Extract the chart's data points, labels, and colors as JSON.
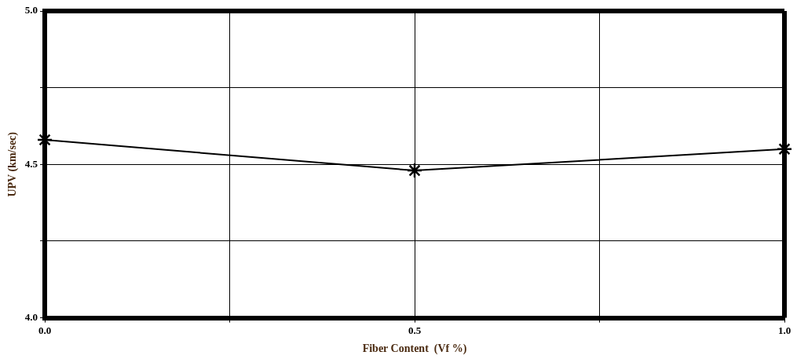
{
  "chart_data": {
    "type": "line",
    "xlabel": "Fiber Content  (Vf %)",
    "ylabel": "UPV (km/sec)",
    "x": [
      0,
      0.5,
      1.0
    ],
    "series": [
      {
        "color": "#000000",
        "values": [
          4.58,
          4.48,
          4.55
        ]
      }
    ],
    "xlim": [
      0,
      1.0
    ],
    "xticks": [
      {
        "value": 0,
        "label": "0.0"
      },
      {
        "value": 0.25,
        "label": null
      },
      {
        "value": 0.5,
        "label": "0.5"
      },
      {
        "value": 0.75,
        "label": null
      },
      {
        "value": 1.0,
        "label": "1.0"
      }
    ],
    "ylim": [
      4.0,
      5.0
    ],
    "yticks": [
      {
        "value": 4.0,
        "label": "4.0"
      },
      {
        "value": 4.25,
        "label": null
      },
      {
        "value": 4.5,
        "label": "4.5"
      },
      {
        "value": 4.75,
        "label": null
      },
      {
        "value": 5.0,
        "label": "5.0"
      }
    ],
    "grid": true,
    "legend": false,
    "marker": "cross",
    "line_style": "solid"
  }
}
